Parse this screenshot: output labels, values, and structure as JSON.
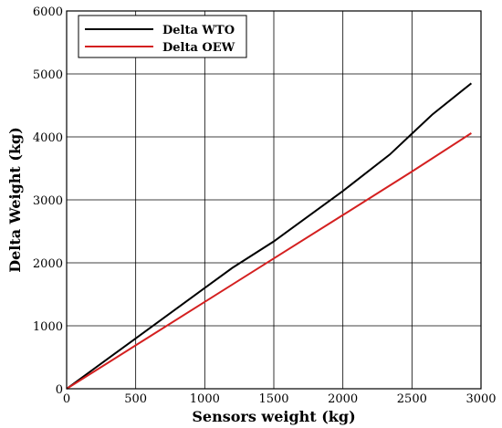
{
  "chart_data": {
    "type": "line",
    "xlabel": "Sensors weight (kg)",
    "ylabel": "Delta Weight (kg)",
    "xlim": [
      0,
      3000
    ],
    "ylim": [
      0,
      6000
    ],
    "xticks": [
      0,
      500,
      1000,
      1500,
      2000,
      2500,
      3000
    ],
    "yticks": [
      0,
      1000,
      2000,
      3000,
      4000,
      5000,
      6000
    ],
    "grid": true,
    "legend_position": "top-left",
    "series": [
      {
        "name": "Delta WTO",
        "color": "#000000",
        "x": [
          0,
          500,
          1000,
          1200,
          1500,
          2000,
          2340,
          2500,
          2650,
          2930
        ],
        "y": [
          0,
          800,
          1600,
          1920,
          2340,
          3140,
          3720,
          4050,
          4360,
          4850
        ]
      },
      {
        "name": "Delta OEW",
        "color": "#d42020",
        "x": [
          0,
          500,
          1000,
          1500,
          2000,
          2500,
          2930
        ],
        "y": [
          0,
          690,
          1380,
          2070,
          2760,
          3450,
          4060
        ]
      }
    ]
  }
}
